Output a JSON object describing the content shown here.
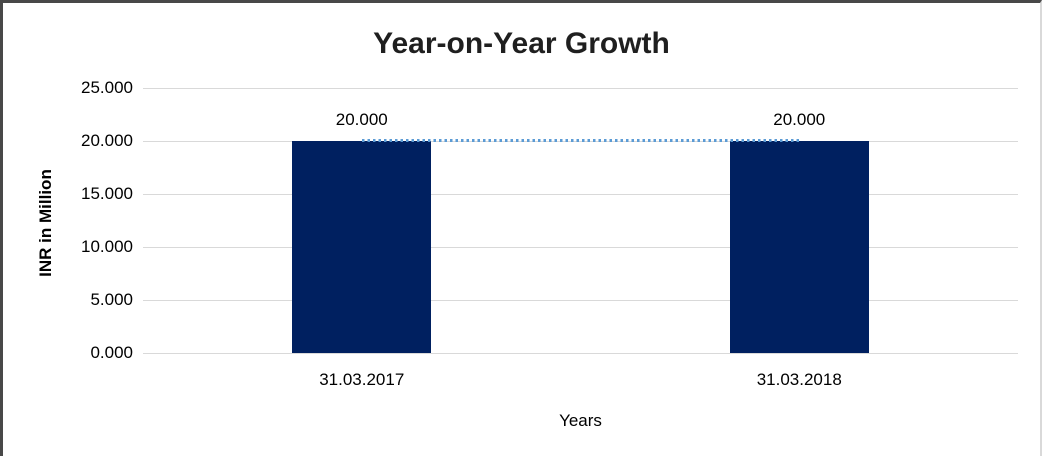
{
  "chart_data": {
    "type": "bar",
    "title": "Year-on-Year Growth",
    "xlabel": "Years",
    "ylabel": "INR in Million",
    "categories": [
      "31.03.2017",
      "31.03.2018"
    ],
    "series": [
      {
        "name": "bar-series",
        "type": "bar",
        "values": [
          20.0,
          20.0
        ]
      },
      {
        "name": "trend-line-series",
        "type": "line",
        "values": [
          20.0,
          20.0
        ]
      }
    ],
    "data_labels": [
      "20.000",
      "20.000"
    ],
    "y_ticks": [
      "25.000",
      "20.000",
      "15.000",
      "10.000",
      "5.000",
      "0.000"
    ],
    "y_tick_values": [
      25,
      20,
      15,
      10,
      5,
      0
    ],
    "ylim": [
      0,
      25
    ],
    "grid": "horizontal",
    "legend": "none",
    "colors": {
      "bar": "#002060",
      "trend_line": "#5B9BD5",
      "gridline": "#d9d9d9",
      "title_text": "#1f1f1f",
      "axis_text": "#000000"
    }
  }
}
